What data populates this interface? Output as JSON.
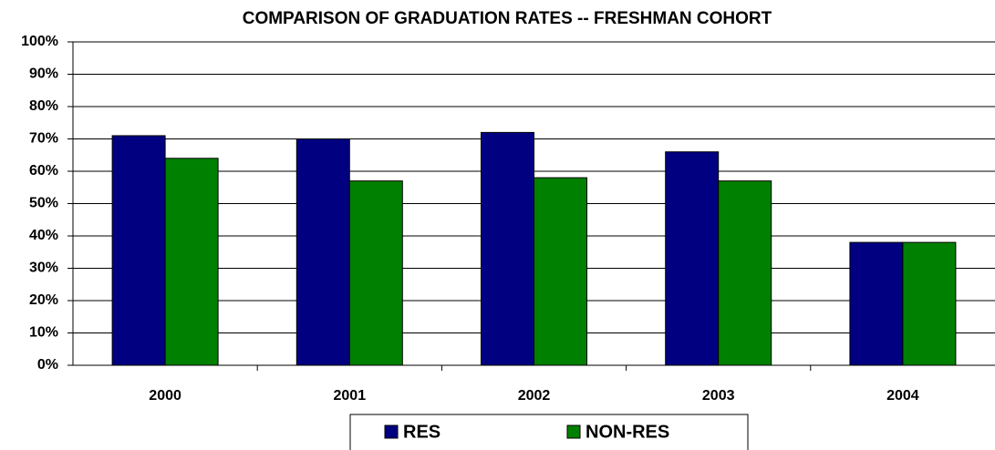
{
  "chart_data": {
    "type": "bar",
    "title": "COMPARISON OF GRADUATION RATES -- FRESHMAN COHORT",
    "categories": [
      "2000",
      "2001",
      "2002",
      "2003",
      "2004"
    ],
    "series": [
      {
        "name": "RES",
        "color": "#000080",
        "values": [
          71,
          70,
          72,
          66,
          38
        ]
      },
      {
        "name": "NON-RES",
        "color": "#008000",
        "values": [
          64,
          57,
          58,
          57,
          38
        ]
      }
    ],
    "ylim": [
      0,
      100
    ],
    "yticks": [
      {
        "value": 0,
        "label": "0%"
      },
      {
        "value": 10,
        "label": "10%"
      },
      {
        "value": 20,
        "label": "20%"
      },
      {
        "value": 30,
        "label": "30%"
      },
      {
        "value": 40,
        "label": "40%"
      },
      {
        "value": 50,
        "label": "50%"
      },
      {
        "value": 60,
        "label": "60%"
      },
      {
        "value": 70,
        "label": "70%"
      },
      {
        "value": 80,
        "label": "80%"
      },
      {
        "value": 90,
        "label": "90%"
      },
      {
        "value": 100,
        "label": "100%"
      }
    ],
    "grid": true,
    "legend": "bottom"
  }
}
